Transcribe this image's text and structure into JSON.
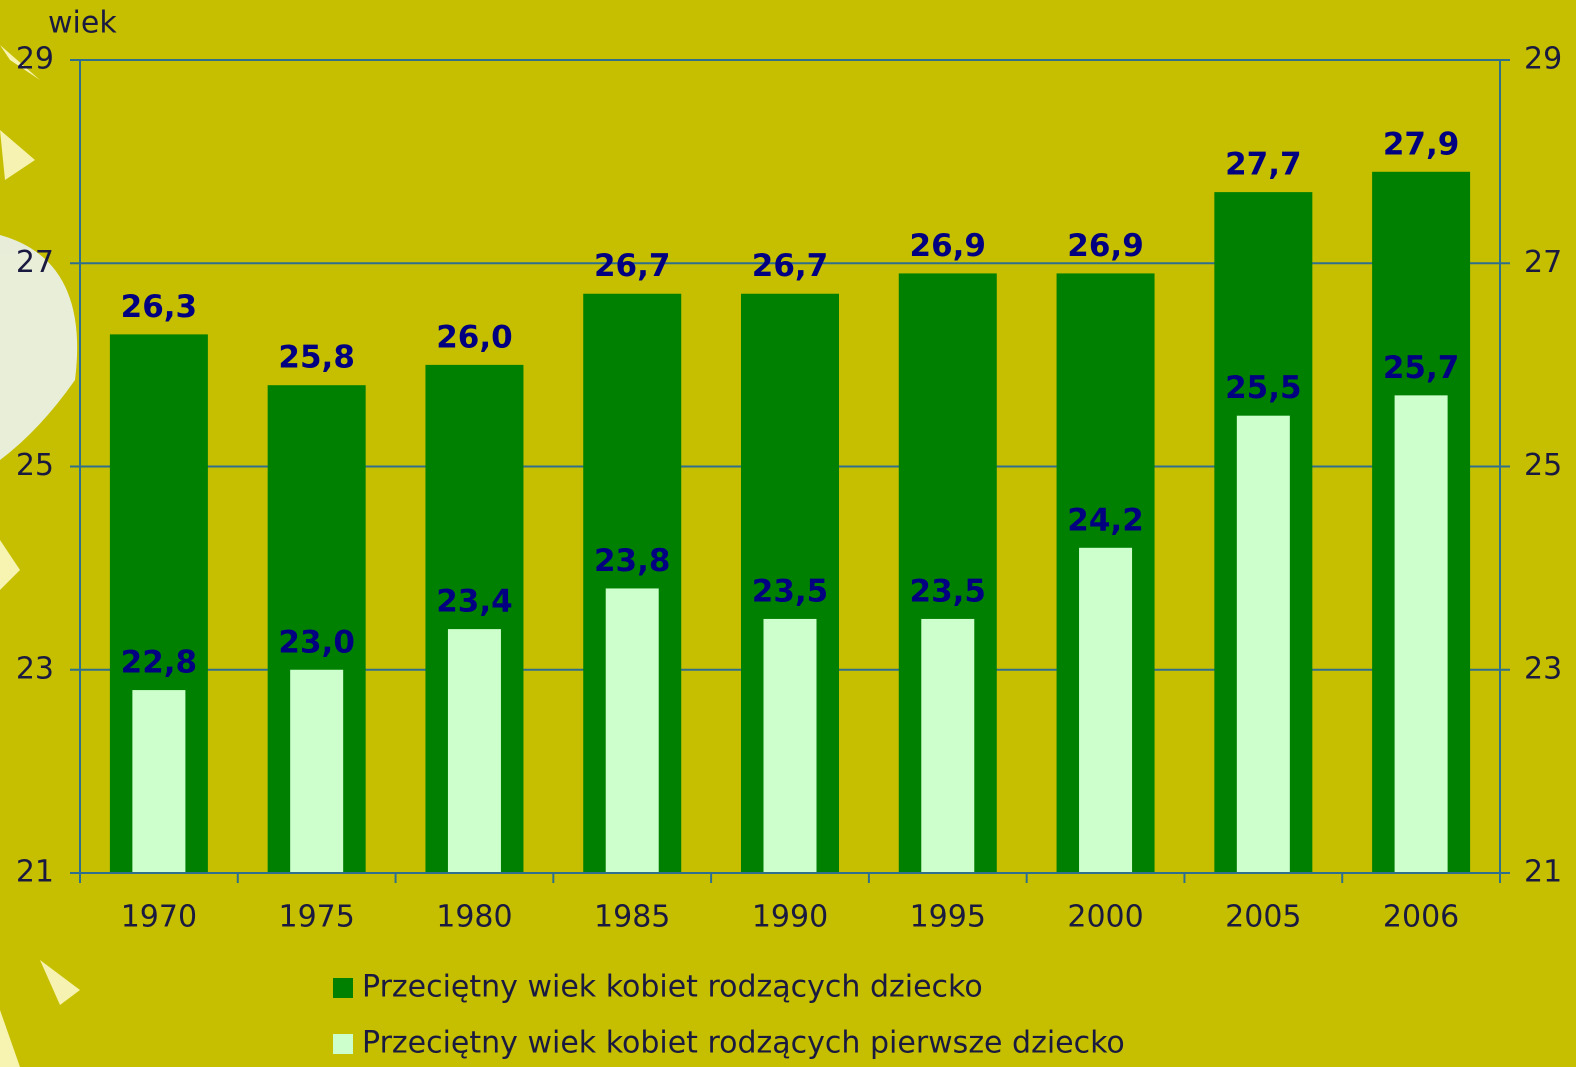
{
  "chart_data": {
    "type": "bar",
    "y_label": "wiek",
    "categories": [
      "1970",
      "1975",
      "1980",
      "1985",
      "1990",
      "1995",
      "2000",
      "2005",
      "2006"
    ],
    "series": [
      {
        "name": "Przeciętny wiek kobiet rodzących dziecko",
        "color": "#008000",
        "values": [
          26.3,
          25.8,
          26.0,
          26.7,
          26.7,
          26.9,
          26.9,
          27.7,
          27.9
        ],
        "value_labels": [
          "26,3",
          "25,8",
          "26,0",
          "26,7",
          "26,7",
          "26,9",
          "26,9",
          "27,7",
          "27,9"
        ]
      },
      {
        "name": "Przeciętny wiek kobiet rodzących pierwsze dziecko",
        "color": "#ccffcc",
        "values": [
          22.8,
          23.0,
          23.4,
          23.8,
          23.5,
          23.5,
          24.2,
          25.5,
          25.7
        ],
        "value_labels": [
          "22,8",
          "23,0",
          "23,4",
          "23,8",
          "23,5",
          "23,5",
          "24,2",
          "25,5",
          "25,7"
        ]
      }
    ],
    "ylim": [
      21,
      29
    ],
    "yticks": [
      21,
      23,
      25,
      27,
      29
    ],
    "y2lim": [
      21,
      29
    ],
    "y2ticks": [
      21,
      23,
      25,
      27,
      29
    ],
    "grid": true
  }
}
